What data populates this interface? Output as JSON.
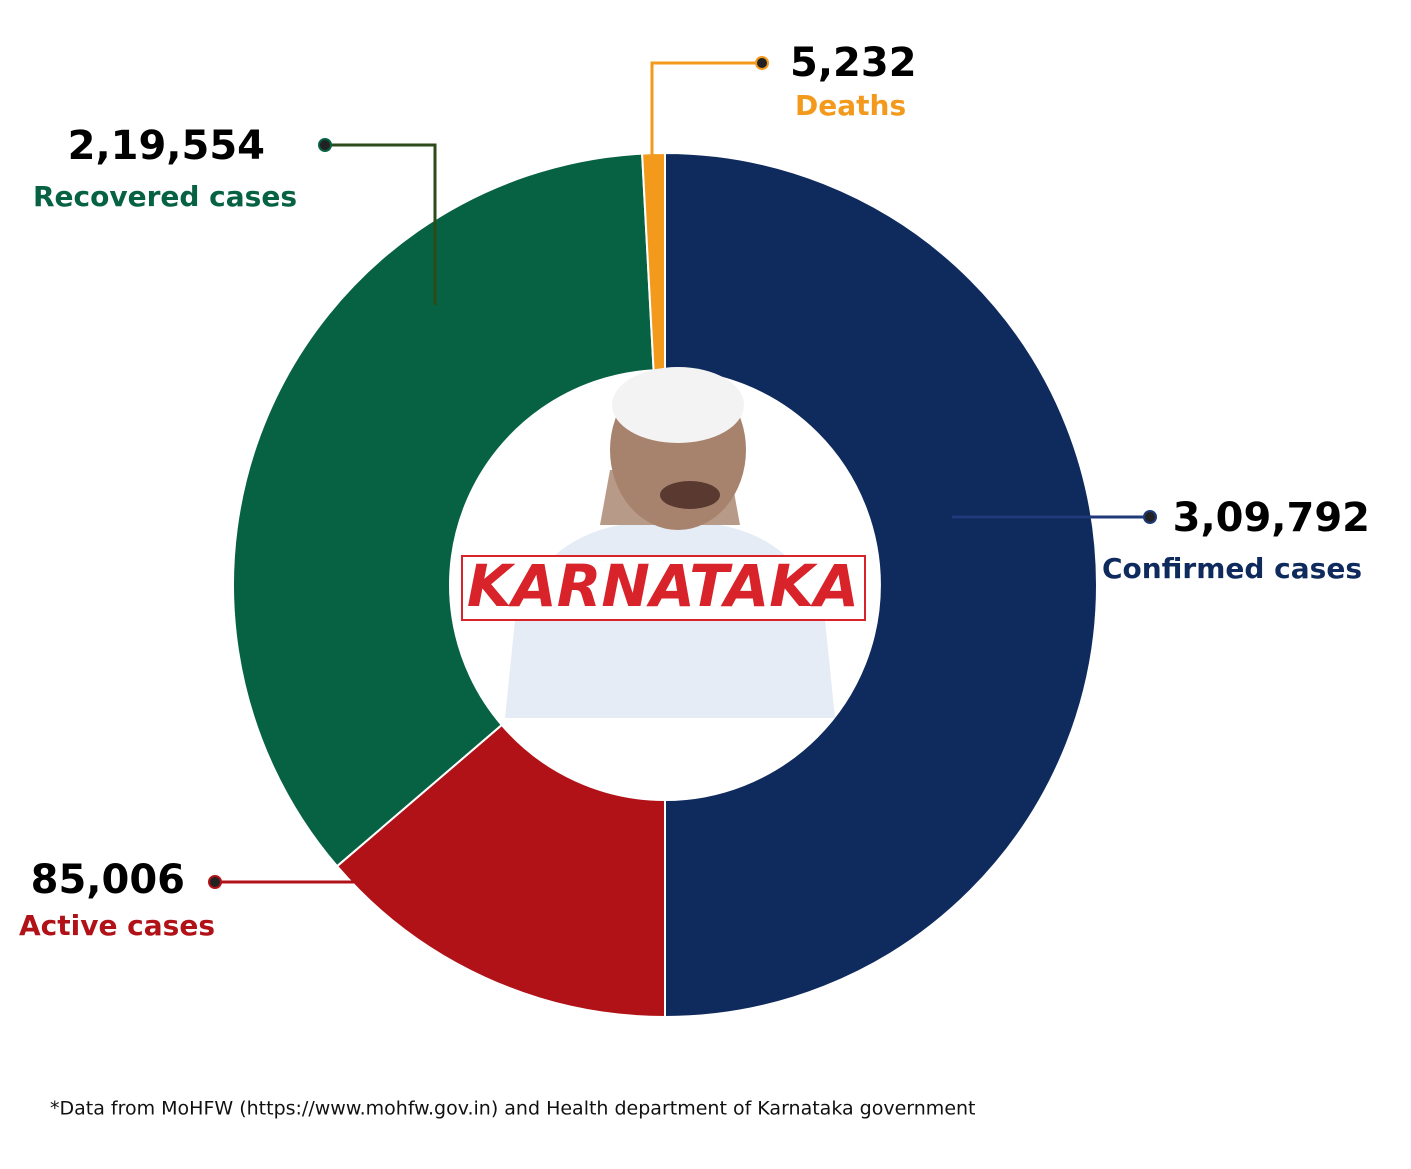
{
  "chart_data": {
    "type": "donut",
    "categories": [
      "Confirmed cases",
      "Active cases",
      "Recovered cases",
      "Deaths"
    ],
    "values": [
      309792,
      85006,
      219554,
      5232
    ],
    "value_labels": [
      "3,09,792",
      "85,006",
      "2,19,554",
      "5,232"
    ],
    "colors": [
      "#0f2a5c",
      "#b11218",
      "#076244",
      "#f39a1d"
    ],
    "center_label": "KARNATAKA",
    "note": "*Data from MoHFW (https://www.mohfw.gov.in) and Health department of Karnataka government"
  }
}
